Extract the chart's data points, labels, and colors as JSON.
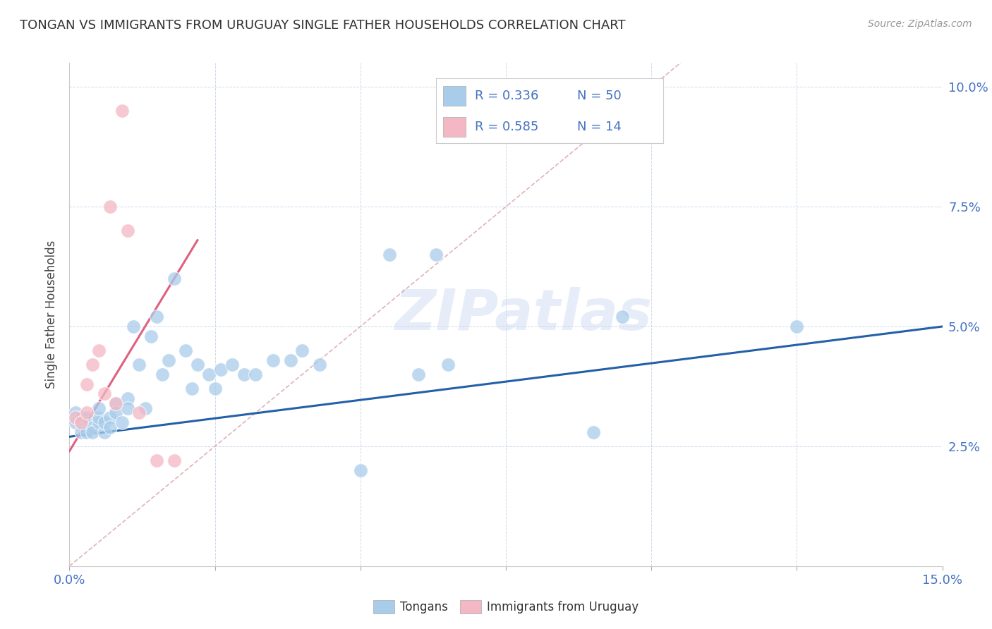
{
  "title": "TONGAN VS IMMIGRANTS FROM URUGUAY SINGLE FATHER HOUSEHOLDS CORRELATION CHART",
  "source": "Source: ZipAtlas.com",
  "ylabel": "Single Father Households",
  "xlim": [
    0.0,
    0.15
  ],
  "ylim": [
    0.0,
    0.105
  ],
  "watermark": "ZIPatlas",
  "blue_R": 0.336,
  "blue_N": 50,
  "pink_R": 0.585,
  "pink_N": 14,
  "blue_color": "#A8CCEA",
  "pink_color": "#F4B8C4",
  "trend_blue_color": "#2460A7",
  "trend_pink_color": "#E06080",
  "trend_dashed_color": "#D0A0A8",
  "blue_points_x": [
    0.001,
    0.001,
    0.002,
    0.002,
    0.002,
    0.003,
    0.003,
    0.004,
    0.004,
    0.005,
    0.005,
    0.005,
    0.006,
    0.006,
    0.007,
    0.007,
    0.008,
    0.008,
    0.009,
    0.01,
    0.01,
    0.011,
    0.012,
    0.013,
    0.014,
    0.015,
    0.016,
    0.017,
    0.018,
    0.02,
    0.021,
    0.022,
    0.024,
    0.025,
    0.026,
    0.028,
    0.03,
    0.032,
    0.035,
    0.038,
    0.04,
    0.043,
    0.05,
    0.055,
    0.06,
    0.063,
    0.065,
    0.09,
    0.095,
    0.125
  ],
  "blue_points_y": [
    0.032,
    0.03,
    0.031,
    0.03,
    0.028,
    0.031,
    0.028,
    0.029,
    0.028,
    0.03,
    0.031,
    0.033,
    0.028,
    0.03,
    0.031,
    0.029,
    0.034,
    0.032,
    0.03,
    0.035,
    0.033,
    0.05,
    0.042,
    0.033,
    0.048,
    0.052,
    0.04,
    0.043,
    0.06,
    0.045,
    0.037,
    0.042,
    0.04,
    0.037,
    0.041,
    0.042,
    0.04,
    0.04,
    0.043,
    0.043,
    0.045,
    0.042,
    0.02,
    0.065,
    0.04,
    0.065,
    0.042,
    0.028,
    0.052,
    0.05
  ],
  "pink_points_x": [
    0.001,
    0.002,
    0.003,
    0.003,
    0.004,
    0.005,
    0.006,
    0.007,
    0.008,
    0.009,
    0.01,
    0.012,
    0.015,
    0.018
  ],
  "pink_points_y": [
    0.031,
    0.03,
    0.038,
    0.032,
    0.042,
    0.045,
    0.036,
    0.075,
    0.034,
    0.095,
    0.07,
    0.032,
    0.022,
    0.022
  ],
  "blue_trend_x": [
    0.0,
    0.15
  ],
  "blue_trend_y": [
    0.027,
    0.05
  ],
  "pink_trend_x": [
    0.0,
    0.022
  ],
  "pink_trend_y": [
    0.024,
    0.068
  ],
  "diag_trend_x": [
    0.0,
    0.105
  ],
  "diag_trend_y": [
    0.0,
    0.105
  ]
}
